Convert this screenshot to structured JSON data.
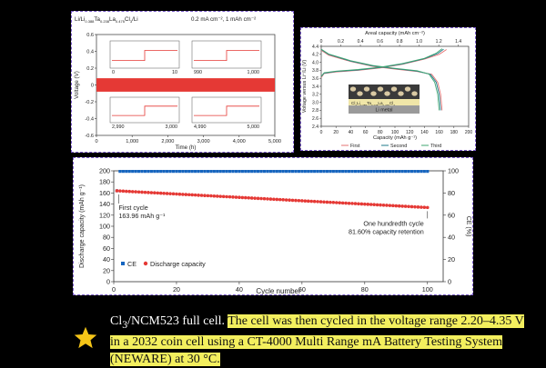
{
  "colors": {
    "red": "#e53935",
    "blue": "#1565c0",
    "pink": "#e57373",
    "green": "#3fa672",
    "teal": "#2e9a8f",
    "highlight": "#f3ef5e",
    "star": "#f5c518"
  },
  "chart_data": [
    {
      "type": "line",
      "panel": "a",
      "title": "Li/Li0.388Ta0.238La0.475Cl3/Li",
      "title_parts": {
        "p1": "Li/Li",
        "s1": "0.388",
        "p2": "Ta",
        "s2": "0.238",
        "p3": "La",
        "s3": "0.475",
        "p4": "Cl",
        "s4": "3",
        "p5": "/Li"
      },
      "condition": "0.2 mA cm⁻², 1 mAh cm⁻²",
      "xlabel": "Time (h)",
      "ylabel": "Voltage (V)",
      "xlim": [
        0,
        5000
      ],
      "ylim": [
        -0.6,
        0.6
      ],
      "xticks": [
        "0",
        "1,000",
        "2,000",
        "3,000",
        "4,000",
        "5,000"
      ],
      "yticks": [
        "0.6",
        "0.4",
        "0.2",
        "0",
        "-0.2",
        "-0.4",
        "-0.6"
      ],
      "band": {
        "x": [
          0,
          5000
        ],
        "y": [
          -0.08,
          0.08
        ]
      },
      "insets": [
        {
          "x": [
            0,
            10
          ],
          "xticks": [
            "0",
            "10"
          ]
        },
        {
          "x": [
            990,
            1000
          ],
          "xticks": [
            "990",
            "1,000"
          ]
        },
        {
          "x": [
            2990,
            3000
          ],
          "xticks": [
            "2,990",
            "3,000"
          ]
        },
        {
          "x": [
            4990,
            5000
          ],
          "xticks": [
            "4,990",
            "5,000"
          ]
        }
      ]
    },
    {
      "type": "line",
      "panel": "b",
      "x2label": "Areal capacity (mAh cm⁻²)",
      "x2ticks": [
        "0",
        "0.2",
        "0.4",
        "0.6",
        "0.8",
        "1.0",
        "1.2",
        "1.4"
      ],
      "xlabel": "Capacity (mAh g⁻¹)",
      "ylabel": "Voltage versus Li⁺/Li (V)",
      "xlim": [
        0,
        200
      ],
      "ylim": [
        2.4,
        4.4
      ],
      "xticks": [
        "0",
        "20",
        "40",
        "60",
        "80",
        "100",
        "120",
        "140",
        "160",
        "180",
        "200"
      ],
      "yticks": [
        "4.4",
        "4.2",
        "4.0",
        "3.8",
        "3.6",
        "3.4",
        "3.2",
        "3.0",
        "2.8",
        "2.6",
        "2.4"
      ],
      "inset_label": "Li metal",
      "inset_formula_parts": {
        "p1": "Cl",
        "s1": "3",
        "p2": "Li",
        "s2": "0.388",
        "p3": "Ta",
        "s3": "0.238",
        "p4": "La",
        "s4": "0.475",
        "p5": "Cl",
        "s5": "3"
      },
      "series": [
        {
          "name": "First",
          "color": "#e57373",
          "charge": [
            [
              0,
              3.62
            ],
            [
              4,
              3.72
            ],
            [
              20,
              3.76
            ],
            [
              50,
              3.8
            ],
            [
              80,
              3.86
            ],
            [
              110,
              3.95
            ],
            [
              140,
              4.08
            ],
            [
              160,
              4.2
            ],
            [
              170,
              4.32
            ]
          ],
          "discharge": [
            [
              0,
              4.3
            ],
            [
              10,
              4.18
            ],
            [
              40,
              4.02
            ],
            [
              70,
              3.9
            ],
            [
              100,
              3.83
            ],
            [
              130,
              3.77
            ],
            [
              150,
              3.7
            ],
            [
              158,
              3.5
            ],
            [
              162,
              3.2
            ],
            [
              164,
              2.8
            ]
          ]
        },
        {
          "name": "Second",
          "color": "#1e7a8a",
          "charge": [
            [
              0,
              3.64
            ],
            [
              4,
              3.73
            ],
            [
              20,
              3.77
            ],
            [
              50,
              3.81
            ],
            [
              80,
              3.87
            ],
            [
              110,
              3.96
            ],
            [
              140,
              4.09
            ],
            [
              158,
              4.22
            ],
            [
              166,
              4.33
            ]
          ],
          "discharge": [
            [
              0,
              4.32
            ],
            [
              10,
              4.2
            ],
            [
              40,
              4.03
            ],
            [
              70,
              3.91
            ],
            [
              100,
              3.84
            ],
            [
              130,
              3.78
            ],
            [
              148,
              3.7
            ],
            [
              156,
              3.5
            ],
            [
              160,
              3.2
            ],
            [
              162,
              2.8
            ]
          ]
        },
        {
          "name": "Third",
          "color": "#3fa672",
          "charge": [
            [
              0,
              3.65
            ],
            [
              4,
              3.74
            ],
            [
              20,
              3.78
            ],
            [
              50,
              3.82
            ],
            [
              80,
              3.88
            ],
            [
              110,
              3.97
            ],
            [
              140,
              4.1
            ],
            [
              156,
              4.23
            ],
            [
              164,
              4.34
            ]
          ],
          "discharge": [
            [
              0,
              4.33
            ],
            [
              10,
              4.21
            ],
            [
              40,
              4.04
            ],
            [
              70,
              3.92
            ],
            [
              100,
              3.85
            ],
            [
              130,
              3.79
            ],
            [
              146,
              3.71
            ],
            [
              154,
              3.5
            ],
            [
              158,
              3.2
            ],
            [
              160,
              2.8
            ]
          ]
        }
      ]
    },
    {
      "type": "scatter",
      "panel": "c",
      "xlabel": "Cycle number",
      "ylabel": "Discharge capacity (mAh g⁻¹)",
      "y2label": "CE (%)",
      "xlim": [
        0,
        105
      ],
      "ylim": [
        0,
        200
      ],
      "y2lim": [
        0,
        100
      ],
      "xticks": [
        0,
        20,
        40,
        60,
        80,
        100
      ],
      "yticks": [
        0,
        20,
        40,
        60,
        80,
        100,
        120,
        140,
        160,
        180,
        200
      ],
      "y2ticks": [
        0,
        20,
        40,
        60,
        80,
        100
      ],
      "legend": [
        {
          "name": "CE",
          "color": "#1565c0"
        },
        {
          "name": "Discharge capacity",
          "color": "#e53935"
        }
      ],
      "discharge_capacity": {
        "start": 163.96,
        "end_fraction": 0.816,
        "cycles": 100
      },
      "ce": {
        "first": 82,
        "first_cycle_plateau": 98,
        "plateau": 99.5
      },
      "annotations": [
        {
          "lines": [
            "First cycle",
            "163.96 mAh g⁻¹"
          ],
          "x": 1
        },
        {
          "lines": [
            "One hundredth cycle",
            "81.60% capacity retention"
          ],
          "x": 100
        }
      ]
    }
  ],
  "caption": {
    "plain_parts": {
      "p1": "Cl",
      "s1": "3",
      "p2": "/NCM523 full cell. "
    },
    "highlight": "The cell was then cycled in the voltage range 2.20–4.35 V in a 2032 coin cell using a CT-4000 Multi Range mA Battery Testing System (NEWARE) at 30 °C."
  }
}
